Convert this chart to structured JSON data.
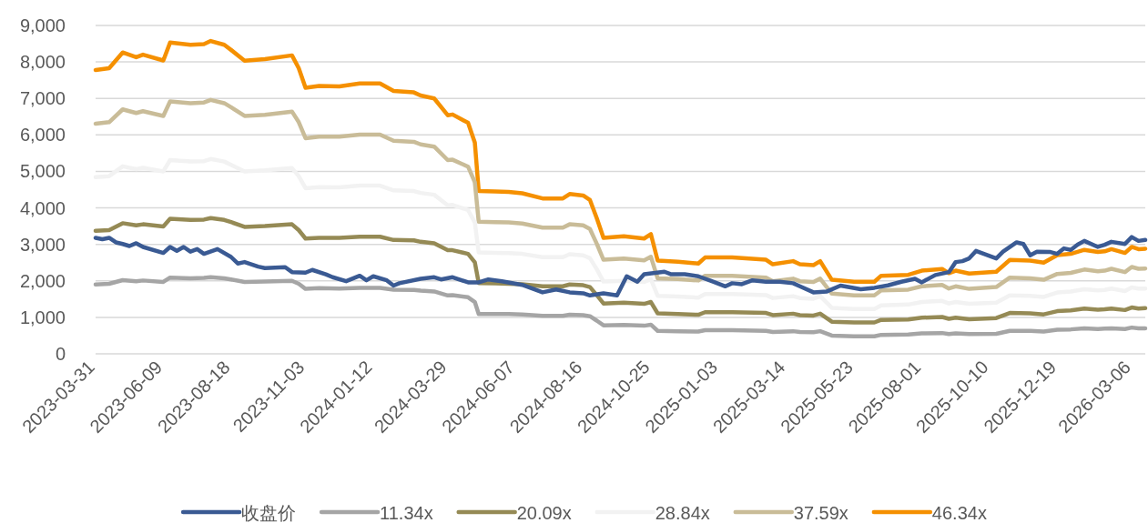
{
  "chart_data": {
    "type": "line",
    "x": [
      "2023-03-31",
      "2023-04-14",
      "2023-04-28",
      "2023-05-12",
      "2023-05-19",
      "2023-06-09",
      "2023-06-16",
      "2023-07-07",
      "2023-07-21",
      "2023-07-28",
      "2023-08-11",
      "2023-08-18",
      "2023-09-01",
      "2023-09-22",
      "2023-10-20",
      "2023-10-27",
      "2023-11-03",
      "2023-11-17",
      "2023-12-08",
      "2023-12-29",
      "2024-01-19",
      "2024-02-02",
      "2024-02-23",
      "2024-03-01",
      "2024-03-15",
      "2024-03-29",
      "2024-04-03",
      "2024-04-19",
      "2024-04-26",
      "2024-04-30",
      "2024-05-17",
      "2024-05-31",
      "2024-06-14",
      "2024-07-05",
      "2024-07-26",
      "2024-08-02",
      "2024-08-16",
      "2024-08-23",
      "2024-08-30",
      "2024-09-06",
      "2024-09-27",
      "2024-10-18",
      "2024-10-25",
      "2024-11-01",
      "2024-11-22",
      "2024-12-13",
      "2024-12-20",
      "2025-01-17",
      "2025-02-21",
      "2025-02-28",
      "2025-03-21",
      "2025-03-28",
      "2025-04-11",
      "2025-04-18",
      "2025-04-30",
      "2025-05-23",
      "2025-06-13",
      "2025-06-20",
      "2025-07-18",
      "2025-08-01",
      "2025-08-22",
      "2025-08-29",
      "2025-09-05",
      "2025-09-19",
      "2025-10-17",
      "2025-10-31",
      "2025-11-21",
      "2025-12-05",
      "2025-12-19",
      "2026-01-02",
      "2026-01-16",
      "2026-01-30",
      "2026-02-06",
      "2026-02-13",
      "2026-02-27",
      "2026-03-06",
      "2026-03-13",
      "2026-03-20"
    ],
    "xlim": [
      "2023-03-31",
      "2026-03-20"
    ],
    "xticks": [
      "2023-03-31",
      "2023-06-09",
      "2023-08-18",
      "2023-11-03",
      "2024-01-12",
      "2024-03-29",
      "2024-06-07",
      "2024-08-16",
      "2024-10-25",
      "2025-01-03",
      "2025-03-14",
      "2025-05-23",
      "2025-08-01",
      "2025-10-10",
      "2025-12-19",
      "2026-03-06"
    ],
    "ylim": [
      0,
      9000
    ],
    "yticks": [
      0,
      {
        "value": 1000,
        "label": "1,000"
      },
      {
        "value": 2000,
        "label": "2,000"
      },
      {
        "value": 3000,
        "label": "3,000"
      },
      {
        "value": 4000,
        "label": "4,000"
      },
      {
        "value": 5000,
        "label": "5,000"
      },
      {
        "value": 6000,
        "label": "6,000"
      },
      {
        "value": 7000,
        "label": "7,000"
      },
      {
        "value": 8000,
        "label": "8,000"
      },
      {
        "value": 9000,
        "label": "9,000"
      }
    ],
    "grid": "y",
    "legend": "bottom",
    "series": [
      {
        "name": "收盘价",
        "color": "#3a5a93",
        "x": [
          "2023-03-31",
          "2023-04-07",
          "2023-04-14",
          "2023-04-21",
          "2023-04-28",
          "2023-05-05",
          "2023-05-12",
          "2023-05-19",
          "2023-06-09",
          "2023-06-16",
          "2023-06-23",
          "2023-06-30",
          "2023-07-07",
          "2023-07-14",
          "2023-07-21",
          "2023-08-04",
          "2023-08-18",
          "2023-08-25",
          "2023-09-01",
          "2023-09-15",
          "2023-09-22",
          "2023-10-13",
          "2023-10-20",
          "2023-11-03",
          "2023-11-10",
          "2023-11-24",
          "2023-12-01",
          "2023-12-15",
          "2023-12-29",
          "2024-01-05",
          "2024-01-12",
          "2024-01-26",
          "2024-02-02",
          "2024-02-08",
          "2024-03-01",
          "2024-03-15",
          "2024-03-22",
          "2024-04-03",
          "2024-04-19",
          "2024-04-30",
          "2024-05-10",
          "2024-05-24",
          "2024-06-14",
          "2024-07-05",
          "2024-07-19",
          "2024-08-02",
          "2024-08-16",
          "2024-08-23",
          "2024-09-06",
          "2024-09-20",
          "2024-09-30",
          "2024-10-11",
          "2024-10-18",
          "2024-11-08",
          "2024-11-15",
          "2024-11-29",
          "2024-12-13",
          "2024-12-27",
          "2025-01-10",
          "2025-01-17",
          "2025-01-27",
          "2025-02-07",
          "2025-02-21",
          "2025-03-07",
          "2025-03-21",
          "2025-03-28",
          "2025-04-11",
          "2025-04-25",
          "2025-05-09",
          "2025-05-30",
          "2025-06-13",
          "2025-06-27",
          "2025-07-11",
          "2025-07-25",
          "2025-08-01",
          "2025-08-15",
          "2025-08-29",
          "2025-09-05",
          "2025-09-12",
          "2025-09-19",
          "2025-09-26",
          "2025-10-17",
          "2025-10-24",
          "2025-11-07",
          "2025-11-14",
          "2025-11-21",
          "2025-11-28",
          "2025-12-12",
          "2025-12-19",
          "2025-12-26",
          "2026-01-02",
          "2026-01-09",
          "2026-01-16",
          "2026-01-30",
          "2026-02-06",
          "2026-02-13",
          "2026-02-27",
          "2026-03-06",
          "2026-03-13",
          "2026-03-20"
        ],
        "values": [
          3180,
          3140,
          3180,
          3055,
          3010,
          2955,
          3030,
          2930,
          2765,
          2930,
          2825,
          2930,
          2800,
          2870,
          2740,
          2870,
          2655,
          2475,
          2515,
          2390,
          2350,
          2375,
          2240,
          2225,
          2300,
          2180,
          2100,
          1990,
          2140,
          2015,
          2125,
          2015,
          1870,
          1935,
          2055,
          2100,
          2040,
          2100,
          1960,
          1960,
          2040,
          1990,
          1890,
          1685,
          1765,
          1685,
          1660,
          1600,
          1660,
          1600,
          2125,
          1975,
          2180,
          2250,
          2180,
          2180,
          2125,
          1990,
          1850,
          1935,
          1910,
          2015,
          1975,
          1975,
          1935,
          1850,
          1685,
          1710,
          1870,
          1770,
          1810,
          1875,
          1975,
          2055,
          1960,
          2160,
          2240,
          2515,
          2540,
          2615,
          2820,
          2615,
          2800,
          3055,
          3010,
          2700,
          2800,
          2790,
          2740,
          2890,
          2850,
          2990,
          3095,
          2930,
          2990,
          3070,
          3010,
          3200,
          3095,
          3120
        ]
      },
      {
        "name": "11.34x",
        "color": "#a5a5a5",
        "values": [
          1900,
          1920,
          2020,
          1990,
          2010,
          1970,
          2090,
          2070,
          2080,
          2100,
          2070,
          2040,
          1970,
          1980,
          2000,
          1920,
          1780,
          1800,
          1790,
          1810,
          1810,
          1760,
          1750,
          1730,
          1710,
          1600,
          1610,
          1550,
          1420,
          1090,
          1090,
          1090,
          1080,
          1040,
          1040,
          1070,
          1060,
          1030,
          910,
          780,
          790,
          770,
          800,
          630,
          620,
          610,
          650,
          650,
          630,
          600,
          620,
          600,
          590,
          620,
          500,
          480,
          480,
          520,
          530,
          560,
          570,
          540,
          560,
          540,
          550,
          630,
          630,
          610,
          660,
          670,
          700,
          680,
          690,
          700,
          680,
          720,
          700,
          700
        ]
      },
      {
        "name": "20.09x",
        "color": "#958a55",
        "values": [
          3370,
          3390,
          3580,
          3520,
          3550,
          3490,
          3700,
          3670,
          3680,
          3720,
          3670,
          3610,
          3480,
          3500,
          3550,
          3390,
          3160,
          3180,
          3180,
          3210,
          3210,
          3120,
          3110,
          3070,
          3030,
          2840,
          2840,
          2740,
          2510,
          1940,
          1930,
          1920,
          1910,
          1850,
          1850,
          1900,
          1880,
          1830,
          1610,
          1380,
          1400,
          1370,
          1420,
          1110,
          1090,
          1070,
          1140,
          1140,
          1120,
          1060,
          1100,
          1060,
          1050,
          1100,
          880,
          860,
          860,
          930,
          940,
          990,
          1010,
          960,
          990,
          950,
          980,
          1120,
          1110,
          1080,
          1170,
          1190,
          1240,
          1210,
          1220,
          1240,
          1200,
          1270,
          1240,
          1250
        ]
      },
      {
        "name": "28.84x",
        "color": "#f2f2f2",
        "values": [
          4840,
          4870,
          5140,
          5060,
          5100,
          5000,
          5310,
          5270,
          5280,
          5340,
          5270,
          5180,
          5000,
          5030,
          5090,
          4870,
          4540,
          4570,
          4560,
          4610,
          4610,
          4480,
          4460,
          4410,
          4360,
          4070,
          4080,
          3940,
          3600,
          2780,
          2770,
          2760,
          2740,
          2650,
          2650,
          2730,
          2700,
          2620,
          2320,
          1980,
          2000,
          1970,
          2040,
          1590,
          1570,
          1540,
          1640,
          1640,
          1610,
          1530,
          1580,
          1530,
          1510,
          1580,
          1260,
          1230,
          1230,
          1330,
          1350,
          1420,
          1450,
          1380,
          1420,
          1370,
          1400,
          1600,
          1590,
          1560,
          1680,
          1710,
          1770,
          1740,
          1750,
          1790,
          1720,
          1820,
          1790,
          1790
        ]
      },
      {
        "name": "37.59x",
        "color": "#c9bc98",
        "values": [
          6310,
          6350,
          6700,
          6600,
          6650,
          6520,
          6920,
          6870,
          6890,
          6960,
          6870,
          6760,
          6520,
          6550,
          6640,
          6350,
          5910,
          5950,
          5950,
          6010,
          6010,
          5840,
          5810,
          5740,
          5680,
          5310,
          5320,
          5130,
          4700,
          3620,
          3610,
          3600,
          3570,
          3460,
          3460,
          3550,
          3520,
          3420,
          3020,
          2580,
          2610,
          2560,
          2660,
          2070,
          2050,
          2010,
          2140,
          2140,
          2090,
          1990,
          2060,
          1990,
          1970,
          2060,
          1650,
          1600,
          1600,
          1740,
          1760,
          1850,
          1890,
          1790,
          1850,
          1780,
          1830,
          2090,
          2070,
          2030,
          2190,
          2220,
          2310,
          2260,
          2280,
          2330,
          2240,
          2380,
          2330,
          2340
        ]
      },
      {
        "name": "46.34x",
        "color": "#f59000",
        "values": [
          7780,
          7830,
          8260,
          8130,
          8200,
          8040,
          8530,
          8470,
          8490,
          8575,
          8470,
          8330,
          8035,
          8080,
          8180,
          7830,
          7290,
          7340,
          7330,
          7410,
          7410,
          7205,
          7165,
          7080,
          7000,
          6540,
          6560,
          6330,
          5790,
          4465,
          4450,
          4440,
          4400,
          4260,
          4260,
          4380,
          4340,
          4215,
          3720,
          3180,
          3220,
          3160,
          3280,
          2555,
          2525,
          2475,
          2640,
          2640,
          2580,
          2455,
          2540,
          2455,
          2430,
          2540,
          2030,
          1975,
          1975,
          2140,
          2165,
          2280,
          2325,
          2210,
          2280,
          2200,
          2250,
          2575,
          2555,
          2500,
          2705,
          2740,
          2850,
          2790,
          2810,
          2870,
          2765,
          2930,
          2870,
          2880
        ]
      }
    ]
  }
}
